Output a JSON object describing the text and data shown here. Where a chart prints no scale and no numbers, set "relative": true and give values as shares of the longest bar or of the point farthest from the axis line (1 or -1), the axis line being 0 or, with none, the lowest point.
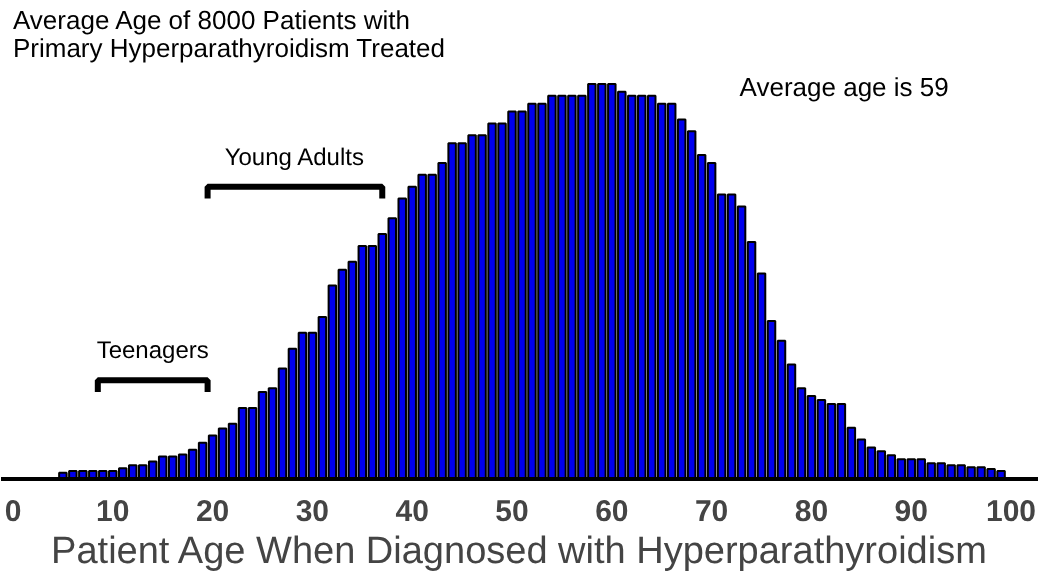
{
  "chart_data": {
    "type": "bar",
    "title": "Average Age of 8000 Patients with\nPrimary Hyperparathyroidism Treated",
    "xlabel": "Patient Age When Diagnosed with Hyperparathyroidism",
    "annotations": [
      "Average age is 59",
      "Young Adults",
      "Teenagers"
    ],
    "relative": true,
    "color": "#0000ee",
    "grid": false,
    "xlim": [
      0,
      102
    ],
    "xticks": [
      0,
      10,
      20,
      30,
      40,
      50,
      60,
      70,
      80,
      90,
      100
    ],
    "x": [
      5,
      6,
      7,
      8,
      9,
      10,
      11,
      12,
      13,
      14,
      15,
      16,
      17,
      18,
      19,
      20,
      21,
      22,
      23,
      24,
      25,
      26,
      27,
      28,
      29,
      30,
      31,
      32,
      33,
      34,
      35,
      36,
      37,
      38,
      39,
      40,
      41,
      42,
      43,
      44,
      45,
      46,
      47,
      48,
      49,
      50,
      51,
      52,
      53,
      54,
      55,
      56,
      57,
      58,
      59,
      60,
      61,
      62,
      63,
      64,
      65,
      66,
      67,
      68,
      69,
      70,
      71,
      72,
      73,
      74,
      75,
      76,
      77,
      78,
      79,
      80,
      81,
      82,
      83,
      84,
      85,
      86,
      87,
      88,
      89,
      90,
      91,
      92,
      93,
      94,
      95,
      96,
      97,
      98,
      99
    ],
    "values": [
      0.016,
      0.02,
      0.02,
      0.02,
      0.02,
      0.02,
      0.027,
      0.035,
      0.035,
      0.044,
      0.057,
      0.057,
      0.062,
      0.074,
      0.092,
      0.11,
      0.128,
      0.14,
      0.18,
      0.18,
      0.22,
      0.23,
      0.28,
      0.33,
      0.37,
      0.37,
      0.41,
      0.49,
      0.53,
      0.55,
      0.59,
      0.59,
      0.62,
      0.66,
      0.71,
      0.74,
      0.77,
      0.77,
      0.8,
      0.85,
      0.85,
      0.87,
      0.87,
      0.9,
      0.9,
      0.93,
      0.93,
      0.95,
      0.95,
      0.97,
      0.97,
      0.97,
      0.97,
      1.0,
      1.0,
      1.0,
      0.98,
      0.97,
      0.97,
      0.97,
      0.95,
      0.95,
      0.91,
      0.88,
      0.82,
      0.8,
      0.72,
      0.72,
      0.69,
      0.6,
      0.52,
      0.4,
      0.35,
      0.29,
      0.23,
      0.21,
      0.2,
      0.19,
      0.19,
      0.13,
      0.1,
      0.08,
      0.07,
      0.06,
      0.05,
      0.05,
      0.05,
      0.04,
      0.04,
      0.035,
      0.035,
      0.03,
      0.03,
      0.025,
      0.02
    ]
  }
}
